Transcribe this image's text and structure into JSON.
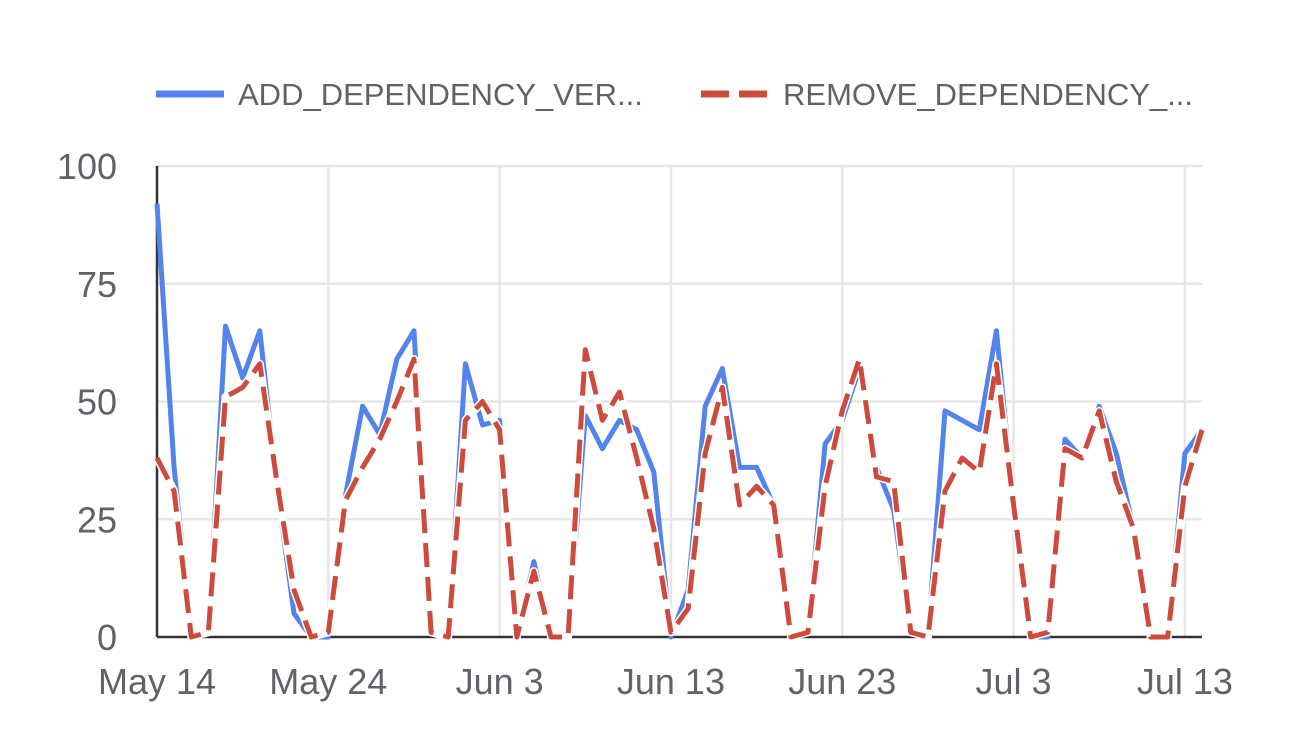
{
  "chart_data": {
    "type": "line",
    "title": "",
    "xlabel": "",
    "ylabel": "",
    "x_start": "May 14",
    "x_end": "Jul 13",
    "x_ticks": [
      {
        "label": "May 14",
        "x": "May 14"
      },
      {
        "label": "May 24",
        "x": "May 24"
      },
      {
        "label": "Jun 3",
        "x": "Jun 3"
      },
      {
        "label": "Jun 13",
        "x": "Jun 13"
      },
      {
        "label": "Jun 23",
        "x": "Jun 23"
      },
      {
        "label": "Jul 3",
        "x": "Jul 3"
      },
      {
        "label": "Jul 13",
        "x": "Jul 13"
      }
    ],
    "y_ticks": [
      0,
      25,
      50,
      75,
      100
    ],
    "ylim": [
      0,
      100
    ],
    "grid": true,
    "legend_position": "top",
    "series": [
      {
        "name": "ADD_DEPENDENCY_VER...",
        "color": "#5383ec",
        "dash": "solid",
        "values": [
          92,
          36,
          0,
          1,
          66,
          55,
          65,
          32,
          5,
          0,
          0,
          30,
          49,
          43,
          59,
          65,
          1,
          0,
          58,
          45,
          46,
          0,
          16,
          0,
          0,
          47,
          40,
          46,
          44,
          35,
          0,
          10,
          49,
          57,
          36,
          36,
          28,
          0,
          1,
          41,
          46,
          57,
          36,
          27,
          1,
          0,
          48,
          46,
          44,
          65,
          28,
          0,
          0,
          42,
          38,
          49,
          39,
          23,
          0,
          0,
          39,
          44
        ]
      },
      {
        "name": "REMOVE_DEPENDENCY_...",
        "color": "#cc4b3c",
        "dash": "dashed",
        "values": [
          38,
          31,
          0,
          1,
          51,
          53,
          58,
          33,
          10,
          0,
          1,
          29,
          36,
          42,
          50,
          59,
          1,
          0,
          46,
          50,
          44,
          0,
          14,
          0,
          0,
          61,
          46,
          52,
          38,
          23,
          1,
          6,
          39,
          53,
          28,
          32,
          28,
          0,
          1,
          32,
          48,
          59,
          34,
          33,
          1,
          0,
          31,
          38,
          35,
          58,
          28,
          0,
          1,
          40,
          38,
          48,
          33,
          23,
          0,
          0,
          32,
          44
        ]
      }
    ]
  }
}
